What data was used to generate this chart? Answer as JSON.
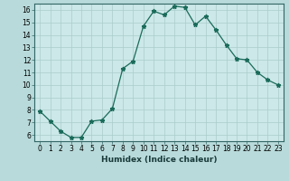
{
  "x": [
    0,
    1,
    2,
    3,
    4,
    5,
    6,
    7,
    8,
    9,
    10,
    11,
    12,
    13,
    14,
    15,
    16,
    17,
    18,
    19,
    20,
    21,
    22,
    23
  ],
  "y": [
    7.9,
    7.1,
    6.3,
    5.8,
    5.8,
    7.1,
    7.2,
    8.1,
    11.3,
    11.9,
    14.7,
    15.9,
    15.6,
    16.3,
    16.2,
    14.8,
    15.5,
    14.4,
    13.2,
    12.1,
    12.0,
    11.0,
    10.4,
    10.0
  ],
  "line_color": "#1a6b5a",
  "marker": "*",
  "marker_size": 3.5,
  "xlabel": "Humidex (Indice chaleur)",
  "xlim": [
    -0.5,
    23.5
  ],
  "ylim": [
    5.5,
    16.5
  ],
  "yticks": [
    6,
    7,
    8,
    9,
    10,
    11,
    12,
    13,
    14,
    15,
    16
  ],
  "xticks": [
    0,
    1,
    2,
    3,
    4,
    5,
    6,
    7,
    8,
    9,
    10,
    11,
    12,
    13,
    14,
    15,
    16,
    17,
    18,
    19,
    20,
    21,
    22,
    23
  ],
  "bg_plot": "#cce8e8",
  "bg_fig": "#b8dada",
  "grid_color": "#aacccc",
  "tick_fontsize": 5.5,
  "xlabel_fontsize": 6.5,
  "linewidth": 0.9
}
